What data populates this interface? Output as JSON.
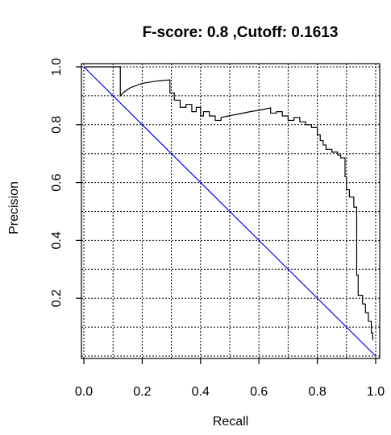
{
  "chart_data": {
    "type": "line",
    "title": "F-score: 0.8 ,Cutoff: 0.1613",
    "xlabel": "Recall",
    "ylabel": "Precision",
    "xlim": [
      0,
      1
    ],
    "ylim": [
      0,
      1
    ],
    "xticks": [
      "0.0",
      "0.2",
      "0.4",
      "0.6",
      "0.8",
      "1.0"
    ],
    "yticks": [
      "0.2",
      "0.4",
      "0.6",
      "0.8",
      "1.0"
    ],
    "grid": true,
    "series": [
      {
        "color": "#000000",
        "points": [
          [
            0.0,
            1.0
          ],
          [
            0.125,
            1.0
          ],
          [
            0.125,
            0.9
          ],
          [
            0.14,
            0.915
          ],
          [
            0.16,
            0.928
          ],
          [
            0.2,
            0.943
          ],
          [
            0.25,
            0.951
          ],
          [
            0.295,
            0.955
          ],
          [
            0.295,
            0.91
          ],
          [
            0.31,
            0.91
          ],
          [
            0.31,
            0.885
          ],
          [
            0.33,
            0.885
          ],
          [
            0.33,
            0.86
          ],
          [
            0.35,
            0.86
          ],
          [
            0.35,
            0.87
          ],
          [
            0.37,
            0.87
          ],
          [
            0.37,
            0.845
          ],
          [
            0.385,
            0.845
          ],
          [
            0.385,
            0.86
          ],
          [
            0.4,
            0.86
          ],
          [
            0.4,
            0.83
          ],
          [
            0.41,
            0.83
          ],
          [
            0.41,
            0.845
          ],
          [
            0.43,
            0.845
          ],
          [
            0.43,
            0.83
          ],
          [
            0.45,
            0.83
          ],
          [
            0.45,
            0.815
          ],
          [
            0.47,
            0.815
          ],
          [
            0.47,
            0.825
          ],
          [
            0.52,
            0.835
          ],
          [
            0.57,
            0.845
          ],
          [
            0.6,
            0.85
          ],
          [
            0.64,
            0.858
          ],
          [
            0.64,
            0.84
          ],
          [
            0.66,
            0.84
          ],
          [
            0.66,
            0.845
          ],
          [
            0.68,
            0.845
          ],
          [
            0.68,
            0.83
          ],
          [
            0.7,
            0.83
          ],
          [
            0.7,
            0.815
          ],
          [
            0.72,
            0.815
          ],
          [
            0.72,
            0.825
          ],
          [
            0.74,
            0.825
          ],
          [
            0.74,
            0.81
          ],
          [
            0.76,
            0.81
          ],
          [
            0.76,
            0.8
          ],
          [
            0.78,
            0.8
          ],
          [
            0.78,
            0.79
          ],
          [
            0.8,
            0.79
          ],
          [
            0.8,
            0.765
          ],
          [
            0.81,
            0.765
          ],
          [
            0.81,
            0.745
          ],
          [
            0.82,
            0.745
          ],
          [
            0.82,
            0.73
          ],
          [
            0.83,
            0.73
          ],
          [
            0.83,
            0.715
          ],
          [
            0.85,
            0.715
          ],
          [
            0.85,
            0.705
          ],
          [
            0.87,
            0.705
          ],
          [
            0.87,
            0.695
          ],
          [
            0.88,
            0.695
          ],
          [
            0.88,
            0.685
          ],
          [
            0.895,
            0.685
          ],
          [
            0.895,
            0.62
          ],
          [
            0.9,
            0.62
          ],
          [
            0.9,
            0.575
          ],
          [
            0.91,
            0.575
          ],
          [
            0.91,
            0.55
          ],
          [
            0.925,
            0.55
          ],
          [
            0.925,
            0.515
          ],
          [
            0.935,
            0.515
          ],
          [
            0.935,
            0.28
          ],
          [
            0.94,
            0.28
          ],
          [
            0.94,
            0.21
          ],
          [
            0.955,
            0.21
          ],
          [
            0.955,
            0.18
          ],
          [
            0.965,
            0.18
          ],
          [
            0.965,
            0.15
          ],
          [
            0.975,
            0.15
          ],
          [
            0.975,
            0.12
          ],
          [
            0.985,
            0.12
          ],
          [
            0.985,
            0.08
          ],
          [
            0.99,
            0.08
          ],
          [
            0.99,
            0.055
          ]
        ]
      },
      {
        "color": "#0000ff",
        "points": [
          [
            0,
            1
          ],
          [
            1,
            0
          ]
        ]
      }
    ]
  }
}
